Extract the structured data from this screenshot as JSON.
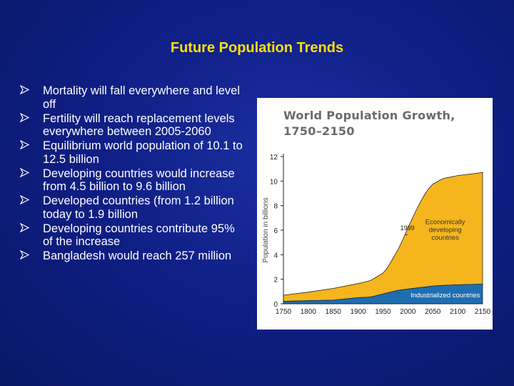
{
  "slide": {
    "title": "Future Population Trends",
    "bullets": [
      "Mortality will fall everywhere and level off",
      "Fertility will reach replacement levels everywhere between 2005-2060",
      "Equilibrium world population of 10.1 to 12.5 billion",
      "Developing countries would increase from 4.5 billion to 9.6 billion",
      "Developed countries (from 1.2 billion today to 1.9 billion",
      "Developing countries contribute 95% of the increase",
      "Bangladesh would reach 257 million"
    ],
    "bullet_icon": "arrow-bullet-icon"
  },
  "colors": {
    "background": "#0f1f86",
    "title": "#ffe000",
    "bullet_text": "#ffffff",
    "developing_fill": "#f5b51c",
    "industrialized_fill": "#1f6fb0"
  },
  "chart_data": {
    "type": "area",
    "title_lines": [
      "World Population Growth,",
      "1750–2150"
    ],
    "ylabel": "Population in billions",
    "xlabel": "",
    "xlim": [
      1750,
      2150
    ],
    "ylim": [
      0,
      12
    ],
    "x_ticks": [
      1750,
      1800,
      1850,
      1900,
      1950,
      2000,
      2050,
      2100,
      2150
    ],
    "y_ticks": [
      0,
      2,
      4,
      6,
      8,
      10,
      12
    ],
    "grid": false,
    "x": [
      1750,
      1800,
      1850,
      1900,
      1925,
      1950,
      1960,
      1970,
      1980,
      1990,
      1999,
      2010,
      2020,
      2030,
      2040,
      2050,
      2070,
      2100,
      2150
    ],
    "series": [
      {
        "name": "Industrialized countries",
        "values": [
          0.2,
          0.25,
          0.3,
          0.5,
          0.55,
          0.8,
          0.9,
          1.0,
          1.1,
          1.15,
          1.2,
          1.25,
          1.3,
          1.35,
          1.4,
          1.45,
          1.5,
          1.55,
          1.6
        ]
      },
      {
        "name": "Economically developing countries",
        "values": [
          0.5,
          0.7,
          0.95,
          1.15,
          1.35,
          1.7,
          2.1,
          2.7,
          3.3,
          4.1,
          4.9,
          5.8,
          6.6,
          7.3,
          7.9,
          8.3,
          8.7,
          8.9,
          9.1
        ]
      }
    ],
    "annotations": [
      {
        "text": "1999",
        "x": 1999,
        "y": 6.0
      },
      {
        "text": "Economically developing countries",
        "x": 2075,
        "y": 6.5
      },
      {
        "text": "Industrialized countries",
        "x": 2075,
        "y": 0.7
      }
    ]
  }
}
